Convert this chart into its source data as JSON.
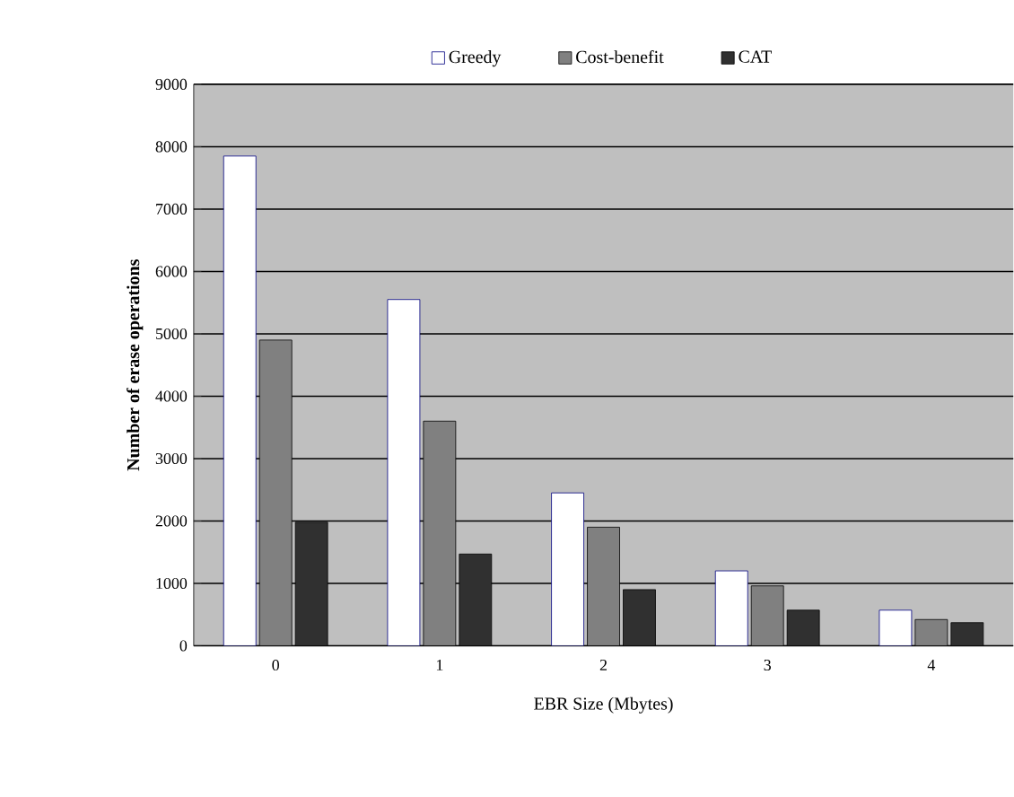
{
  "chart_data": {
    "type": "bar",
    "xlabel": "EBR Size (Mbytes)",
    "ylabel": "Number of erase operations",
    "categories": [
      "0",
      "1",
      "2",
      "3",
      "4"
    ],
    "series": [
      {
        "name": "Greedy",
        "color": "#ffffff",
        "values": [
          7850,
          5550,
          2450,
          1200,
          570
        ]
      },
      {
        "name": "Cost-benefit",
        "color": "#808080",
        "values": [
          4900,
          3600,
          1900,
          960,
          420
        ]
      },
      {
        "name": "CAT",
        "color": "#303030",
        "values": [
          1980,
          1470,
          900,
          570,
          370
        ]
      }
    ],
    "ylim": [
      0,
      9000
    ],
    "yticks": [
      0,
      1000,
      2000,
      3000,
      4000,
      5000,
      6000,
      7000,
      8000,
      9000
    ],
    "grid": "y",
    "legend": "top"
  }
}
